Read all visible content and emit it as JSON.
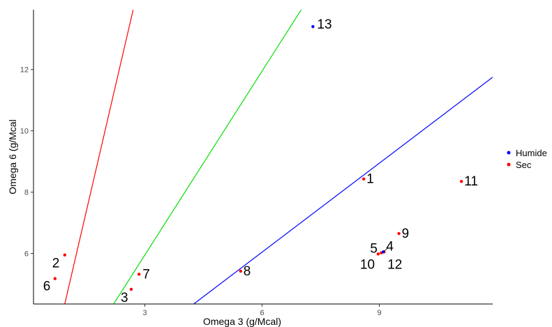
{
  "chart_data": {
    "type": "scatter",
    "title": "",
    "xlabel": "Omega 3 (g/Mcal)",
    "ylabel": "Omega 6 (g/Mcal",
    "xlim": [
      0.15,
      11.9
    ],
    "ylim": [
      4.35,
      13.95
    ],
    "x_ticks": [
      3,
      6,
      9
    ],
    "y_ticks": [
      6,
      8,
      10,
      12
    ],
    "x_tick_labels": [
      "3",
      "6",
      "9"
    ],
    "y_tick_labels": [
      "6",
      "8",
      "10",
      "12"
    ],
    "grid": false,
    "legend_position": "right",
    "legend": [
      {
        "label": "Humide",
        "color": "#0000ff"
      },
      {
        "label": "Sec",
        "color": "#ff0000"
      }
    ],
    "points": [
      {
        "label": "1",
        "x": 8.6,
        "y": 8.43,
        "group": "Sec"
      },
      {
        "label": "2",
        "x": 0.95,
        "y": 5.95,
        "group": "Sec"
      },
      {
        "label": "3",
        "x": 2.65,
        "y": 4.83,
        "group": "Sec"
      },
      {
        "label": "4",
        "x": 9.12,
        "y": 6.05,
        "group": "Sec"
      },
      {
        "label": "5",
        "x": 9.05,
        "y": 6.02,
        "group": "Sec"
      },
      {
        "label": "6",
        "x": 0.7,
        "y": 5.18,
        "group": "Sec"
      },
      {
        "label": "7",
        "x": 2.85,
        "y": 5.32,
        "group": "Sec"
      },
      {
        "label": "8",
        "x": 5.45,
        "y": 5.42,
        "group": "Sec"
      },
      {
        "label": "9",
        "x": 9.5,
        "y": 6.65,
        "group": "Sec"
      },
      {
        "label": "10",
        "x": 8.97,
        "y": 5.98,
        "group": "Sec"
      },
      {
        "label": "11",
        "x": 11.1,
        "y": 8.35,
        "group": "Sec"
      },
      {
        "label": "12",
        "x": 9.1,
        "y": 6.05,
        "group": "Humide"
      },
      {
        "label": "13",
        "x": 7.3,
        "y": 13.4,
        "group": "Humide"
      }
    ],
    "lines": [
      {
        "color": "#ff0000",
        "x1": 0.95,
        "y1": 4.35,
        "x2": 2.7,
        "y2": 13.95
      },
      {
        "color": "#00e000",
        "x1": 2.2,
        "y1": 4.35,
        "x2": 7.0,
        "y2": 13.95
      },
      {
        "color": "#0000ff",
        "x1": 4.25,
        "y1": 4.35,
        "x2": 11.9,
        "y2": 11.75
      }
    ]
  }
}
